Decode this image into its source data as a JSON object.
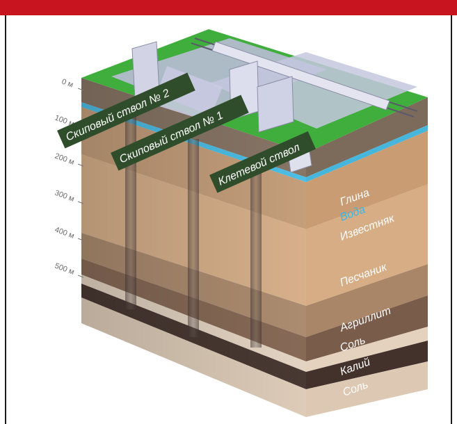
{
  "depth_scale": [
    "0 м",
    "100 м",
    "200 м",
    "300 м",
    "400 м",
    "500 м"
  ],
  "shafts": [
    "Скиповый ствол № 2",
    "Скиповый ствол № 1",
    "Клетевой ствол"
  ],
  "layers": [
    "Глина",
    "Вода",
    "Известняк",
    "Песчаник",
    "Агриллит",
    "Соль",
    "Калий",
    "Соль"
  ],
  "colors": {
    "top_bar": "#c8141e",
    "grass": "#3fae3c",
    "water": "#4ec2ea",
    "clay": "#8a7868",
    "limestone": "#c9a27e",
    "sandstone": "#dcb48e",
    "argillite": "#8a6c58",
    "salt": "#e8d8c6",
    "potash": "#4a3a33",
    "label_bg": "#2f4d2a"
  }
}
